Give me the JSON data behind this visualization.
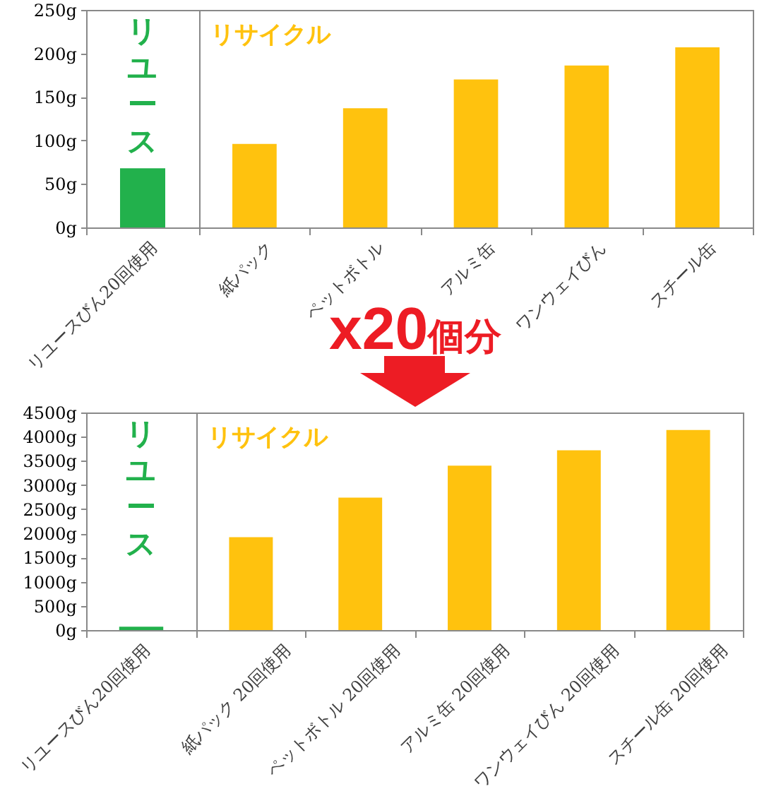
{
  "chart_data": [
    {
      "type": "bar",
      "categories": [
        "リユースびん20回使用"
      ],
      "values": [
        68
      ],
      "colors": [
        "#22b14c"
      ],
      "ylim": [
        0,
        250
      ],
      "yticks": [
        {
          "value": 0,
          "label": "0g"
        },
        {
          "value": 50,
          "label": "50g"
        },
        {
          "value": 100,
          "label": "100g"
        },
        {
          "value": 150,
          "label": "150g"
        },
        {
          "value": 200,
          "label": "200g"
        },
        {
          "value": 250,
          "label": "250g"
        }
      ],
      "annotations": [
        "リユース"
      ]
    },
    {
      "type": "bar",
      "categories": [
        "紙パック",
        "ペットボトル",
        "アルミ缶",
        "ワンウェイびん",
        "スチール缶"
      ],
      "values": [
        96,
        137,
        170,
        186,
        207
      ],
      "colors": [
        "#ffc20e",
        "#ffc20e",
        "#ffc20e",
        "#ffc20e",
        "#ffc20e"
      ],
      "ylim": [
        0,
        250
      ],
      "tick_labels": "x",
      "annotations": [
        "リサイクル"
      ]
    },
    {
      "type": "bar",
      "categories": [
        "リユースびん20回使用"
      ],
      "values": [
        70
      ],
      "colors": [
        "#22b14c"
      ],
      "ylim": [
        0,
        4500
      ],
      "yticks": [
        {
          "value": 0,
          "label": "0g"
        },
        {
          "value": 500,
          "label": "500g"
        },
        {
          "value": 1000,
          "label": "1000g"
        },
        {
          "value": 1500,
          "label": "1500g"
        },
        {
          "value": 2000,
          "label": "2000g"
        },
        {
          "value": 2500,
          "label": "2500g"
        },
        {
          "value": 3000,
          "label": "3000g"
        },
        {
          "value": 3500,
          "label": "3500g"
        },
        {
          "value": 4000,
          "label": "4000g"
        },
        {
          "value": 4500,
          "label": "4500g"
        }
      ],
      "annotations": [
        "リユース"
      ]
    },
    {
      "type": "bar",
      "categories": [
        "紙パック 20回使用",
        "ペットボトル 20回使用",
        "アルミ缶 20回使用",
        "ワンウェイびん 20回使用",
        "スチール缶 20回使用"
      ],
      "values": [
        1920,
        2740,
        3400,
        3720,
        4140
      ],
      "colors": [
        "#ffc20e",
        "#ffc20e",
        "#ffc20e",
        "#ffc20e",
        "#ffc20e"
      ],
      "ylim": [
        0,
        4500
      ],
      "tick_labels": "x",
      "annotations": [
        "リサイクル",
        "x20個分"
      ]
    }
  ]
}
